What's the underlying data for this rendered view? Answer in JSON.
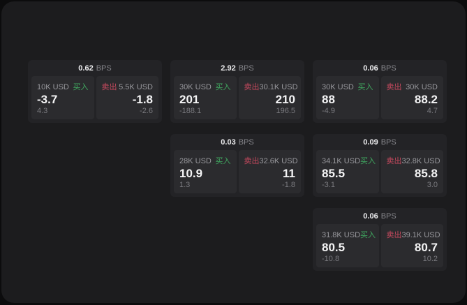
{
  "page": {
    "unit_label": "BPS",
    "buy_label": "买入",
    "sell_label": "卖出"
  },
  "colors": {
    "background": "#0c0c0d",
    "surface": "#1c1c1e",
    "card": "#232326",
    "panel": "#2b2b2e",
    "buy_green": "#40a860",
    "sell_red": "#c5495e",
    "value_white": "#f4f4f5",
    "muted_gray": "#98989d"
  },
  "cards": [
    {
      "bps": "0.62",
      "buy": {
        "amount": "10K USD",
        "value": "-3.7",
        "sub": "4.3"
      },
      "sell": {
        "amount": "5.5K USD",
        "value": "-1.8",
        "sub": "-2.6"
      }
    },
    {
      "bps": "2.92",
      "buy": {
        "amount": "30K USD",
        "value": "201",
        "sub": "-188.1"
      },
      "sell": {
        "amount": "30.1K USD",
        "value": "210",
        "sub": "196.5"
      }
    },
    {
      "bps": "0.06",
      "buy": {
        "amount": "30K USD",
        "value": "88",
        "sub": "-4.9"
      },
      "sell": {
        "amount": "30K USD",
        "value": "88.2",
        "sub": "4.7"
      }
    },
    {
      "bps": "0.03",
      "buy": {
        "amount": "28K USD",
        "value": "10.9",
        "sub": "1.3"
      },
      "sell": {
        "amount": "32.6K USD",
        "value": "11",
        "sub": "-1.8"
      }
    },
    {
      "bps": "0.09",
      "buy": {
        "amount": "34.1K USD",
        "value": "85.5",
        "sub": "-3.1"
      },
      "sell": {
        "amount": "32.8K USD",
        "value": "85.8",
        "sub": "3.0"
      }
    },
    {
      "bps": "0.06",
      "buy": {
        "amount": "31.8K USD",
        "value": "80.5",
        "sub": "-10.8"
      },
      "sell": {
        "amount": "39.1K USD",
        "value": "80.7",
        "sub": "10.2"
      }
    }
  ]
}
